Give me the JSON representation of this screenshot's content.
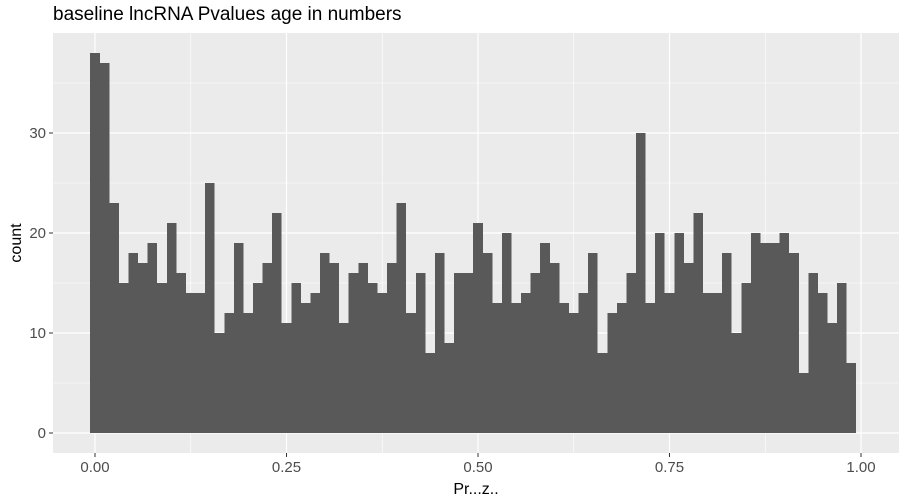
{
  "chart_data": {
    "type": "bar",
    "title": "baseline lncRNA Pvalues age in numbers",
    "xlabel": "Pr...z..",
    "ylabel": "count",
    "xlim": [
      -0.0125,
      1.0125
    ],
    "ylim": [
      0,
      40
    ],
    "grid": true,
    "bin_width": 0.0125,
    "x_ticks": [
      {
        "value": 0.0,
        "label": "0.00"
      },
      {
        "value": 0.25,
        "label": "0.25"
      },
      {
        "value": 0.5,
        "label": "0.50"
      },
      {
        "value": 0.75,
        "label": "0.75"
      },
      {
        "value": 1.0,
        "label": "1.00"
      }
    ],
    "y_ticks": [
      {
        "value": 0,
        "label": "0"
      },
      {
        "value": 10,
        "label": "10"
      },
      {
        "value": 20,
        "label": "20"
      },
      {
        "value": 30,
        "label": "30"
      }
    ],
    "bar_color": "#595959",
    "panel_color": "#ebebeb",
    "x": [
      0.0,
      0.0125,
      0.025,
      0.0375,
      0.05,
      0.0625,
      0.075,
      0.0875,
      0.1,
      0.1125,
      0.125,
      0.1375,
      0.15,
      0.1625,
      0.175,
      0.1875,
      0.2,
      0.2125,
      0.225,
      0.2375,
      0.25,
      0.2625,
      0.275,
      0.2875,
      0.3,
      0.3125,
      0.325,
      0.3375,
      0.35,
      0.3625,
      0.375,
      0.3875,
      0.4,
      0.4125,
      0.425,
      0.4375,
      0.45,
      0.4625,
      0.475,
      0.4875,
      0.5,
      0.5125,
      0.525,
      0.5375,
      0.55,
      0.5625,
      0.575,
      0.5875,
      0.6,
      0.6125,
      0.625,
      0.6375,
      0.65,
      0.6625,
      0.675,
      0.6875,
      0.7,
      0.7125,
      0.725,
      0.7375,
      0.75,
      0.7625,
      0.775,
      0.7875,
      0.8,
      0.8125,
      0.825,
      0.8375,
      0.85,
      0.8625,
      0.875,
      0.8875,
      0.9,
      0.9125,
      0.925,
      0.9375,
      0.95,
      0.9625,
      0.975,
      0.9875,
      1.0
    ],
    "values": [
      38,
      37,
      23,
      15,
      18,
      17,
      19,
      15,
      21,
      16,
      14,
      14,
      25,
      10,
      12,
      19,
      12,
      15,
      17,
      22,
      11,
      15,
      13,
      14,
      18,
      17,
      11,
      16,
      17,
      15,
      14,
      17,
      23,
      12,
      16,
      8,
      18,
      9,
      16,
      16,
      21,
      18,
      13,
      20,
      13,
      14,
      16,
      19,
      17,
      13,
      12,
      14,
      18,
      8,
      12,
      13,
      16,
      30,
      13,
      20,
      14,
      20,
      17,
      22,
      14,
      14,
      18,
      10,
      15,
      20,
      19,
      19,
      20,
      18,
      6,
      16,
      14,
      11,
      15,
      7,
      0
    ]
  }
}
